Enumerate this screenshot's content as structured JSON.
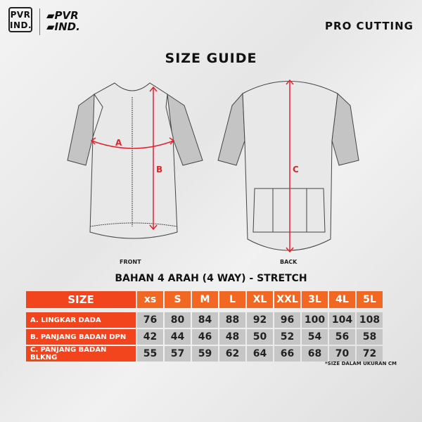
{
  "brand": {
    "logo_left": "PVR IND.",
    "logo_right": "PVR IND.",
    "tagline": "PRO CUTTING"
  },
  "title": "SIZE GUIDE",
  "diagram": {
    "front_label": "FRONT",
    "back_label": "BACK",
    "markers": {
      "a": "A",
      "b": "B",
      "c": "C"
    },
    "accent_color": "#e0242b"
  },
  "table": {
    "subtitle": "BAHAN 4 ARAH (4 WAY) - STRETCH",
    "header_label": "SIZE",
    "sizes": [
      "xs",
      "S",
      "M",
      "L",
      "XL",
      "XXL",
      "3L",
      "4L",
      "5L"
    ],
    "rows": [
      {
        "label": "A. LINGKAR DADA",
        "values": [
          "76",
          "80",
          "84",
          "88",
          "92",
          "96",
          "100",
          "104",
          "108"
        ]
      },
      {
        "label": "B. PANJANG BADAN DPN",
        "values": [
          "42",
          "44",
          "46",
          "48",
          "50",
          "52",
          "54",
          "56",
          "58"
        ]
      },
      {
        "label": "C. PANJANG BADAN BLKNG",
        "values": [
          "55",
          "57",
          "59",
          "62",
          "64",
          "66",
          "68",
          "70",
          "72"
        ]
      }
    ],
    "note": "*SIZE DALAM UKURAN CM",
    "header_color": "#f26722",
    "label_color": "#f2451d",
    "cell_color": "#c6c6c6"
  }
}
